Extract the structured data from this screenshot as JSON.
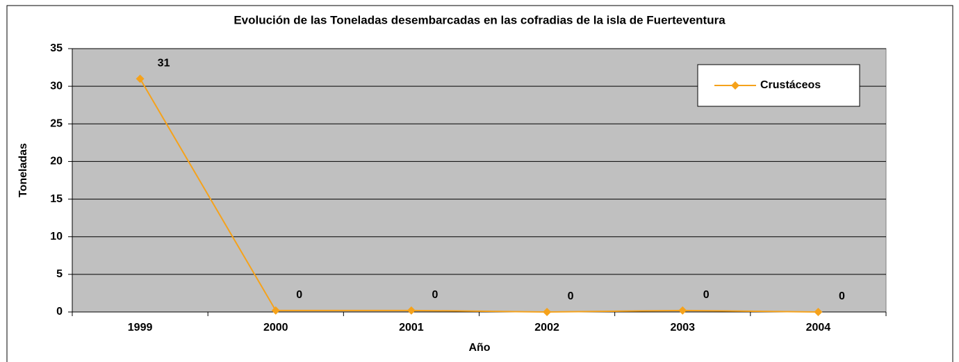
{
  "chart_data": {
    "type": "line",
    "title": "Evolución de las Toneladas desembarcadas en las cofradias de la isla de Fuerteventura",
    "x_label": "Año",
    "y_label": "Toneladas",
    "categories": [
      "1999",
      "2000",
      "2001",
      "2002",
      "2003",
      "2004"
    ],
    "series": [
      {
        "name": "Crustáceos",
        "color": "#f5a21b",
        "values": [
          31,
          0.2,
          0.2,
          0,
          0.2,
          0
        ],
        "value_labels": [
          "31",
          "0",
          "0",
          "0",
          "0",
          "0"
        ]
      }
    ],
    "ylim": [
      0,
      35
    ],
    "yticks": [
      0,
      5,
      10,
      15,
      20,
      25,
      30,
      35
    ],
    "grid": true,
    "legend": "upper right"
  }
}
